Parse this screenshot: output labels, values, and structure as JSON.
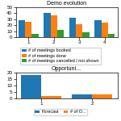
{
  "chart_data": [
    {
      "type": "bar",
      "title": "Demo evolution",
      "categories": [
        "1",
        "2",
        "3",
        "4"
      ],
      "series": [
        {
          "name": "# of meetings booked",
          "values": [
            28,
            40,
            32,
            28
          ]
        },
        {
          "name": "# of meetings done",
          "values": [
            26,
            37,
            22,
            25
          ]
        },
        {
          "name": "# of meetings cancelled / not shown",
          "values": [
            5,
            12,
            8,
            5
          ]
        }
      ],
      "ylim": [
        0,
        50
      ],
      "yticks": [
        0,
        10,
        20,
        30,
        40,
        50
      ],
      "legend": "lower center"
    },
    {
      "type": "bar",
      "title": "Opportuni...",
      "categories": [
        "1",
        "2"
      ],
      "series": [
        {
          "name": "Forecast",
          "values": [
            18,
            3
          ]
        },
        {
          "name": "# of O...",
          "values": [
            2,
            3
          ]
        }
      ],
      "ylim": [
        0,
        20
      ],
      "yticks": [
        0,
        5,
        10,
        15,
        20
      ],
      "legend": "lower center"
    }
  ]
}
